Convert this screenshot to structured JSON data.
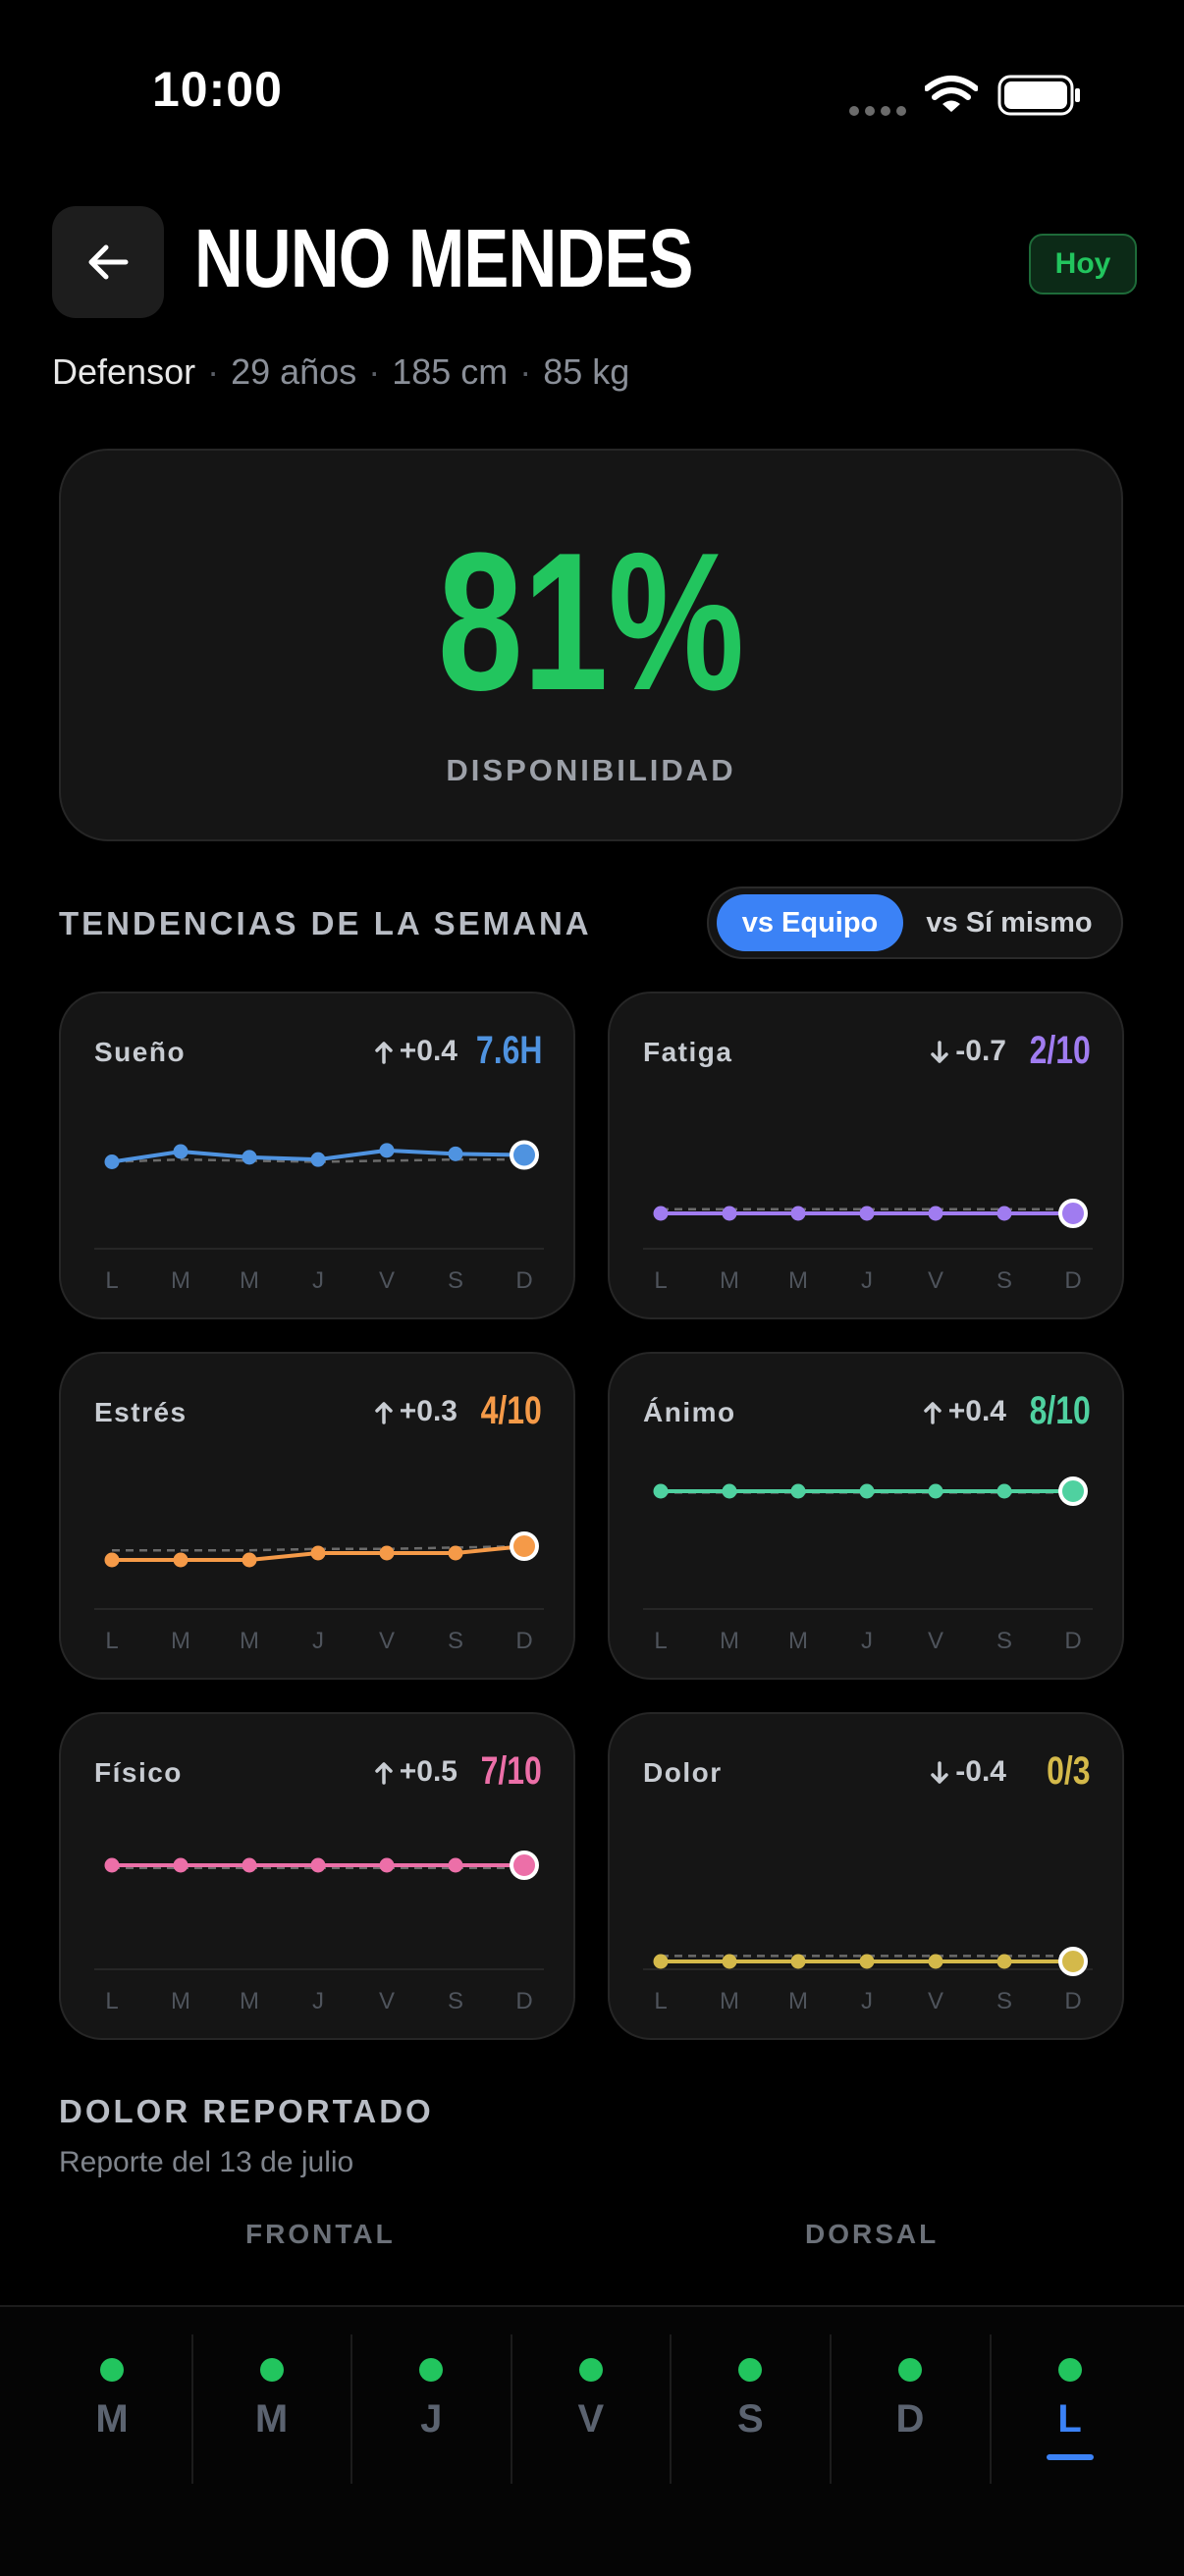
{
  "status_bar": {
    "time": "10:00"
  },
  "header": {
    "player_name": "NUNO MENDES",
    "today_badge": "Hoy"
  },
  "player_meta": {
    "position": "Defensor",
    "age": "29 años",
    "height": "185 cm",
    "weight": "85 kg"
  },
  "availability": {
    "value": "81%",
    "label": "DISPONIBILIDAD",
    "color": "#22c55e"
  },
  "trends": {
    "title": "TENDENCIAS DE LA SEMANA",
    "toggle": {
      "selected": "vs Equipo",
      "other": "vs Sí mismo"
    },
    "days": [
      "L",
      "M",
      "M",
      "J",
      "V",
      "S",
      "D"
    ],
    "metrics": [
      {
        "name": "Sueño",
        "delta": "+0.4",
        "direction": "up",
        "value": "7.6H",
        "color": "#4f93e0",
        "values": [
          6.9,
          7.8,
          7.3,
          7.1,
          7.9,
          7.6,
          7.5
        ],
        "reference": [
          6.9,
          7.1,
          7.0,
          6.9,
          7.0,
          7.1,
          7.1
        ],
        "range": [
          0,
          12
        ]
      },
      {
        "name": "Fatiga",
        "delta": "-0.7",
        "direction": "down",
        "value": "2/10",
        "color": "#a07cf0",
        "values": [
          2,
          2,
          2,
          2,
          2,
          2,
          2
        ],
        "reference": [
          2.3,
          2.3,
          2.3,
          2.3,
          2.3,
          2.3,
          2.3
        ],
        "range": [
          0,
          10
        ]
      },
      {
        "name": "Estrés",
        "delta": "+0.3",
        "direction": "up",
        "value": "4/10",
        "color": "#f59a48",
        "values": [
          3,
          3,
          3,
          3.5,
          3.5,
          3.5,
          4
        ],
        "reference": [
          3.7,
          3.7,
          3.7,
          3.8,
          3.8,
          3.9,
          4
        ],
        "range": [
          0,
          10
        ]
      },
      {
        "name": "Ánimo",
        "delta": "+0.4",
        "direction": "up",
        "value": "8/10",
        "color": "#4fd1a0",
        "values": [
          8,
          8,
          8,
          8,
          8,
          8,
          8
        ],
        "reference": [
          7.9,
          7.9,
          7.9,
          7.9,
          7.9,
          7.9,
          7.9
        ],
        "range": [
          0,
          10
        ]
      },
      {
        "name": "Físico",
        "delta": "+0.5",
        "direction": "up",
        "value": "7/10",
        "color": "#ec6fa8",
        "values": [
          7,
          7,
          7,
          7,
          7,
          7,
          7
        ],
        "reference": [
          6.8,
          6.8,
          6.8,
          6.8,
          6.8,
          6.8,
          6.8
        ],
        "range": [
          0,
          10
        ]
      },
      {
        "name": "Dolor",
        "delta": "-0.4",
        "direction": "down",
        "value": "0/3",
        "color": "#d4b94a",
        "values": [
          0,
          0,
          0,
          0,
          0,
          0,
          0
        ],
        "reference": [
          0.12,
          0.12,
          0.12,
          0.12,
          0.12,
          0.12,
          0.12
        ],
        "range": [
          0,
          3
        ]
      }
    ]
  },
  "pain": {
    "title": "DOLOR REPORTADO",
    "subtitle": "Reporte del 13 de julio",
    "front_label": "FRONTAL",
    "back_label": "DORSAL"
  },
  "day_nav": [
    {
      "letter": "M",
      "active": false
    },
    {
      "letter": "M",
      "active": false
    },
    {
      "letter": "J",
      "active": false
    },
    {
      "letter": "V",
      "active": false
    },
    {
      "letter": "S",
      "active": false
    },
    {
      "letter": "D",
      "active": false
    },
    {
      "letter": "L",
      "active": true
    }
  ]
}
